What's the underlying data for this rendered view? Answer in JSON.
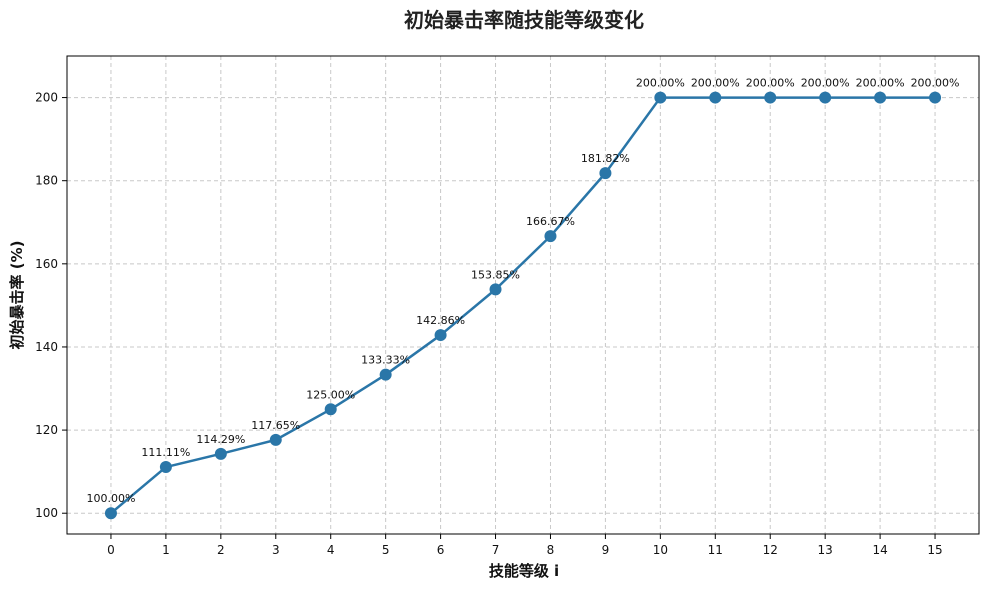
{
  "chart_data": {
    "type": "line",
    "title": "初始暴击率随技能等级变化",
    "xlabel": "技能等级 i",
    "ylabel": "初始暴击率 (%)",
    "x": [
      0,
      1,
      2,
      3,
      4,
      5,
      6,
      7,
      8,
      9,
      10,
      11,
      12,
      13,
      14,
      15
    ],
    "values": [
      100.0,
      111.11,
      114.29,
      117.65,
      125.0,
      133.33,
      142.86,
      153.85,
      166.67,
      181.82,
      200.0,
      200.0,
      200.0,
      200.0,
      200.0,
      200.0
    ],
    "data_labels": [
      "100.00%",
      "111.11%",
      "114.29%",
      "117.65%",
      "125.00%",
      "133.33%",
      "142.86%",
      "153.85%",
      "166.67%",
      "181.82%",
      "200.00%",
      "200.00%",
      "200.00%",
      "200.00%",
      "200.00%",
      "200.00%"
    ],
    "xlim": [
      -0.8,
      15.8
    ],
    "ylim": [
      95,
      210
    ],
    "yticks": [
      100,
      120,
      140,
      160,
      180,
      200
    ],
    "grid": true,
    "colors": {
      "line": "#2a76a8",
      "marker": "#2a76a8"
    }
  }
}
